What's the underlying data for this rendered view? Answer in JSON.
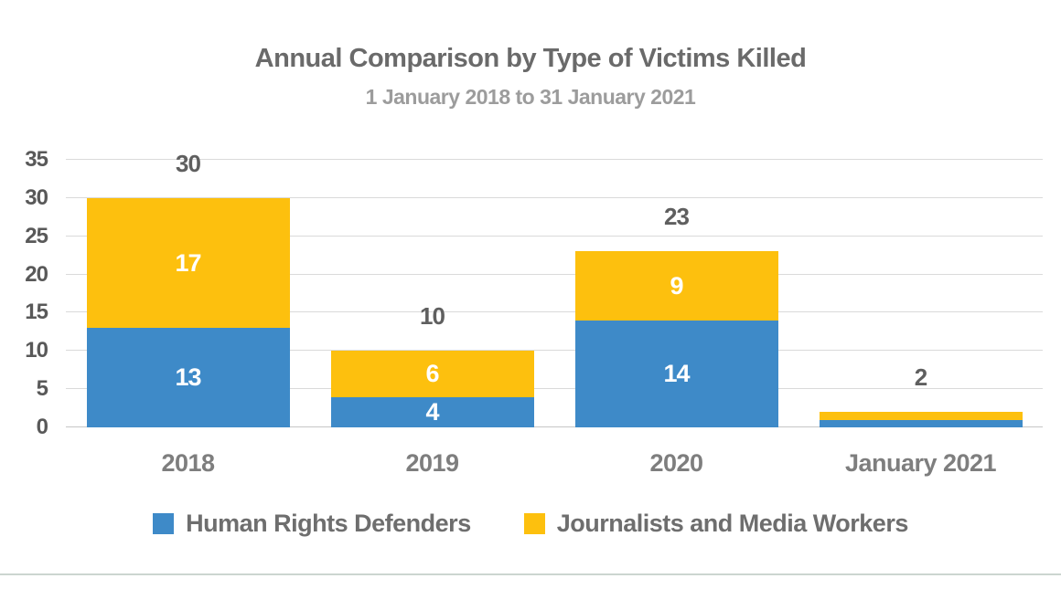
{
  "chart_data": {
    "type": "bar",
    "stacked": true,
    "title": "Annual Comparison by Type of Victims Killed",
    "subtitle": "1 January 2018 to 31 January 2021",
    "categories": [
      "2018",
      "2019",
      "2020",
      "January 2021"
    ],
    "series": [
      {
        "name": "Human Rights Defenders",
        "color": "#3E8AC8",
        "values": [
          13,
          4,
          14,
          1
        ]
      },
      {
        "name": "Journalists and Media Workers",
        "color": "#FDC00E",
        "values": [
          17,
          6,
          9,
          1
        ]
      }
    ],
    "totals": [
      30,
      10,
      23,
      2
    ],
    "ylim": [
      0,
      35
    ],
    "yticks": [
      0,
      5,
      10,
      15,
      20,
      25,
      30,
      35
    ],
    "grid": true,
    "legend_position": "bottom"
  },
  "colors": {
    "title": "#6A6A6A",
    "subtitle": "#9C9C9C",
    "axis_label": "#595959",
    "total_label": "#5F5F5F",
    "category_label": "#7E7E7E",
    "legend_text": "#6E6E6E",
    "gridline": "#DADADA",
    "zero_line": "#C6C6C6",
    "bar_label": "#FFFFFF",
    "bottom_divider": "#CBD5D0"
  }
}
